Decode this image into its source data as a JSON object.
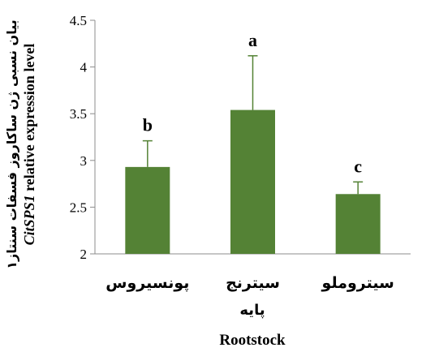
{
  "chart_data": {
    "type": "bar",
    "categories": [
      "پونسیروس",
      "سیترنج",
      "سیتروملو"
    ],
    "values": [
      2.93,
      3.54,
      2.64
    ],
    "errors": [
      0.28,
      0.58,
      0.13
    ],
    "significance": [
      "b",
      "a",
      "c"
    ],
    "ylim": [
      2,
      4.5
    ],
    "yticks": [
      2,
      2.5,
      3,
      3.5,
      4,
      4.5
    ],
    "ytick_labels": [
      "2",
      "2.5",
      "3",
      "3.5",
      "4",
      "4.5"
    ],
    "ylabel_fa": "بیان نسبی ژن ساکاروز فسفات سنتاز۱",
    "ylabel_en_italic": "CitSPS1",
    "ylabel_en_rest": " relative expression level",
    "xlabel_fa": "پایه",
    "xlabel_en": "Rootstock",
    "bar_color": "#548235",
    "grid": false
  }
}
